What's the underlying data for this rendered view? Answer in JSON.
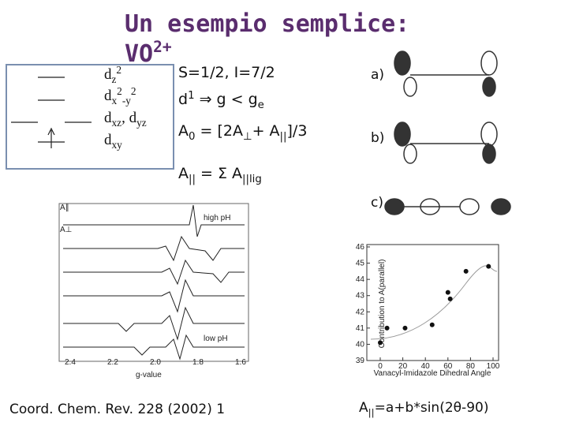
{
  "title": {
    "line1": "Un esempio semplice:",
    "ion": "VO",
    "charge": "2+"
  },
  "orbital_labels": [
    [
      {
        "t": "d"
      },
      {
        "t": "z",
        "pos": "sub"
      },
      {
        "t": "2",
        "pos": "sup"
      }
    ],
    [
      {
        "t": "d"
      },
      {
        "t": "x",
        "pos": "sub"
      },
      {
        "t": "2",
        "pos": "sup"
      },
      {
        "t": "-y",
        "pos": "sub"
      },
      {
        "t": "2",
        "pos": "sup"
      }
    ],
    [
      {
        "t": "d"
      },
      {
        "t": "xz",
        "pos": "sub"
      },
      {
        "t": ", d"
      },
      {
        "t": "yz",
        "pos": "sub"
      }
    ],
    [
      {
        "t": "d"
      },
      {
        "t": "xy",
        "pos": "sub"
      }
    ]
  ],
  "formulas": [
    [
      {
        "t": "S=1/2, I=7/2"
      }
    ],
    [
      {
        "t": "d"
      },
      {
        "t": "1",
        "pos": "sup"
      },
      {
        "t": " ⇒ g < g"
      },
      {
        "t": "e",
        "pos": "sub"
      }
    ],
    [
      {
        "t": "A"
      },
      {
        "t": "0",
        "pos": "sub"
      },
      {
        "t": " = [2A"
      },
      {
        "t": "⊥",
        "pos": "sub"
      },
      {
        "t": "+ A"
      },
      {
        "t": "||",
        "pos": "sub"
      },
      {
        "t": "]/3"
      }
    ],
    [
      {
        "t": "A"
      },
      {
        "t": "||",
        "pos": "sub"
      },
      {
        "t": " = Σ A"
      },
      {
        "t": "||lig",
        "pos": "sub"
      }
    ]
  ],
  "structure_labels": [
    "a)",
    "b)",
    "c)"
  ],
  "spectrum": {
    "a_par": "A∥",
    "a_perp": "A⊥",
    "high": "high pH",
    "low": "low pH",
    "xlabel": "g-value",
    "xticks": [
      "2.4",
      "2.2",
      "2.0",
      "1.8",
      "1.6"
    ]
  },
  "plot": {
    "ylabel": "Contribution to A(parallel)",
    "xlabel": "Vanacyl-Imidazole Dihedral Angle",
    "xlim": [
      0,
      100
    ],
    "ylim": [
      39,
      46
    ],
    "yticks": [
      39,
      40,
      41,
      42,
      43,
      44,
      45,
      46
    ],
    "xticks": [
      0,
      20,
      40,
      60,
      80,
      100
    ],
    "x": [
      0,
      6,
      22,
      46,
      60,
      62,
      76,
      96
    ],
    "values": [
      40.1,
      41.0,
      41.0,
      41.2,
      43.2,
      42.8,
      44.5,
      44.8
    ]
  },
  "citation": "Coord. Chem. Rev. 228 (2002) 1",
  "equation": [
    {
      "t": "A"
    },
    {
      "t": "||",
      "pos": "sub"
    },
    {
      "t": "=a+b*sin(2θ-90)"
    }
  ]
}
